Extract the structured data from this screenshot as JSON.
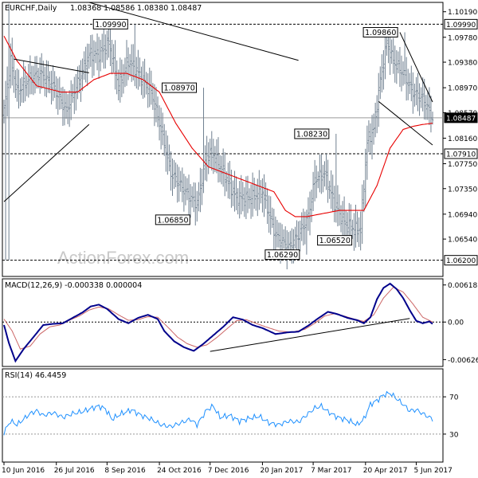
{
  "chart_data": [
    {
      "type": "ohlc",
      "title": "EURCHF,Daily",
      "ohlc_readout": [
        "1.08368",
        "1.08586",
        "1.08380",
        "1.08487"
      ],
      "ylim": [
        1.0594,
        1.1034
      ],
      "y_ticks": [
        "1.10190",
        "1.09780",
        "1.09380",
        "1.08970",
        "1.08570",
        "1.08160",
        "1.07750",
        "1.07350",
        "1.06940",
        "1.06540"
      ],
      "y_highlight": [
        "1.09990",
        "1.08487",
        "1.07910",
        "1.06200"
      ],
      "x_ticks": [
        "10 Jun 2016",
        "26 Jul 2016",
        "8 Sep 2016",
        "24 Oct 2016",
        "7 Dec 2016",
        "20 Jan 2017",
        "7 Mar 2017",
        "20 Apr 2017",
        "5 Jun 2017"
      ],
      "x_tick_index": [
        0,
        32,
        63,
        95,
        126,
        158,
        189,
        221,
        252
      ],
      "last_index": 262,
      "horizontal_levels": [
        1.0999,
        1.0791,
        1.062
      ],
      "current_level": 1.08487,
      "level_labels": [
        {
          "text": "1.09990",
          "i": 80,
          "value": 1.0999
        },
        {
          "text": "1.08970",
          "i": 122,
          "value": 1.0897
        },
        {
          "text": "1.06850",
          "i": 118,
          "value": 1.0685
        },
        {
          "text": "1.06290",
          "i": 185,
          "value": 1.0629
        },
        {
          "text": "1.08230",
          "i": 203,
          "value": 1.0823
        },
        {
          "text": "1.06520",
          "i": 217,
          "value": 1.0652
        },
        {
          "text": "1.09860",
          "i": 245,
          "value": 1.0986
        },
        {
          "text": "1.06200",
          "i": 1,
          "value": 1.062
        }
      ],
      "trendlines": [
        {
          "from": [
            0,
            1.0714
          ],
          "to": [
            52,
            1.0838
          ]
        },
        {
          "from": [
            6,
            1.0943
          ],
          "to": [
            52,
            1.0921
          ]
        },
        {
          "from": [
            52,
            1.1034
          ],
          "to": [
            180,
            1.0941
          ]
        },
        {
          "from": [
            242,
            1.0986
          ],
          "to": [
            262,
            1.0874
          ]
        },
        {
          "from": [
            229,
            1.0875
          ],
          "to": [
            262,
            1.0805
          ]
        }
      ],
      "price_waypoints": [
        [
          0,
          1.086
        ],
        [
          4,
          1.094
        ],
        [
          8,
          1.089
        ],
        [
          15,
          1.091
        ],
        [
          22,
          1.092
        ],
        [
          30,
          1.09
        ],
        [
          38,
          1.086
        ],
        [
          46,
          1.091
        ],
        [
          52,
          1.095
        ],
        [
          58,
          1.095
        ],
        [
          64,
          1.097
        ],
        [
          70,
          1.09
        ],
        [
          76,
          1.094
        ],
        [
          82,
          1.092
        ],
        [
          90,
          1.089
        ],
        [
          96,
          1.083
        ],
        [
          102,
          1.076
        ],
        [
          108,
          1.074
        ],
        [
          114,
          1.072
        ],
        [
          118,
          1.071
        ],
        [
          124,
          1.079
        ],
        [
          128,
          1.079
        ],
        [
          134,
          1.076
        ],
        [
          142,
          1.072
        ],
        [
          150,
          1.072
        ],
        [
          158,
          1.073
        ],
        [
          166,
          1.066
        ],
        [
          174,
          1.064
        ],
        [
          180,
          1.066
        ],
        [
          186,
          1.069
        ],
        [
          190,
          1.075
        ],
        [
          196,
          1.076
        ],
        [
          202,
          1.071
        ],
        [
          208,
          1.068
        ],
        [
          214,
          1.067
        ],
        [
          218,
          1.067
        ],
        [
          222,
          1.081
        ],
        [
          226,
          1.083
        ],
        [
          230,
          1.091
        ],
        [
          234,
          1.097
        ],
        [
          238,
          1.094
        ],
        [
          244,
          1.092
        ],
        [
          250,
          1.089
        ],
        [
          256,
          1.088
        ],
        [
          262,
          1.0849
        ]
      ],
      "sma_waypoints": [
        [
          0,
          1.098
        ],
        [
          8,
          1.094
        ],
        [
          20,
          1.09
        ],
        [
          35,
          1.089
        ],
        [
          45,
          1.089
        ],
        [
          55,
          1.091
        ],
        [
          65,
          1.092
        ],
        [
          75,
          1.092
        ],
        [
          85,
          1.091
        ],
        [
          95,
          1.089
        ],
        [
          105,
          1.084
        ],
        [
          115,
          1.08
        ],
        [
          125,
          1.077
        ],
        [
          135,
          1.076
        ],
        [
          145,
          1.075
        ],
        [
          155,
          1.074
        ],
        [
          165,
          1.073
        ],
        [
          172,
          1.07
        ],
        [
          178,
          1.069
        ],
        [
          185,
          1.069
        ],
        [
          195,
          1.0695
        ],
        [
          205,
          1.07
        ],
        [
          212,
          1.07
        ],
        [
          220,
          1.07
        ],
        [
          228,
          1.074
        ],
        [
          236,
          1.08
        ],
        [
          244,
          1.083
        ],
        [
          250,
          1.0835
        ],
        [
          256,
          1.0838
        ],
        [
          262,
          1.084
        ]
      ]
    },
    {
      "type": "line",
      "title": "MACD(12,26,9) -0.000338 0.000004",
      "ylim": [
        -0.0074,
        0.0072
      ],
      "y_ticks": [
        "0.00618",
        "0.00",
        "-0.00626"
      ],
      "zero_line": 0,
      "trendline": {
        "from": [
          126,
          -0.0049
        ],
        "to": [
          248,
          0.0006
        ]
      },
      "series": [
        {
          "color": "#00008b",
          "values": [
            [
              0,
              -0.0005
            ],
            [
              3,
              -0.0035
            ],
            [
              7,
              -0.0065
            ],
            [
              12,
              -0.0045
            ],
            [
              18,
              -0.0025
            ],
            [
              24,
              -0.0005
            ],
            [
              30,
              -0.0003
            ],
            [
              36,
              -0.0002
            ],
            [
              42,
              0.0007
            ],
            [
              48,
              0.0016
            ],
            [
              53,
              0.0026
            ],
            [
              58,
              0.0029
            ],
            [
              63,
              0.0022
            ],
            [
              70,
              0.0005
            ],
            [
              76,
              -0.0002
            ],
            [
              82,
              0.0007
            ],
            [
              88,
              0.0012
            ],
            [
              94,
              0.0005
            ],
            [
              98,
              -0.0015
            ],
            [
              104,
              -0.0032
            ],
            [
              110,
              -0.0042
            ],
            [
              116,
              -0.0048
            ],
            [
              122,
              -0.0036
            ],
            [
              128,
              -0.0022
            ],
            [
              134,
              -0.0008
            ],
            [
              140,
              0.0008
            ],
            [
              146,
              0.0004
            ],
            [
              152,
              -0.0005
            ],
            [
              158,
              -0.001
            ],
            [
              166,
              -0.002
            ],
            [
              174,
              -0.0017
            ],
            [
              180,
              -0.0016
            ],
            [
              186,
              -0.0006
            ],
            [
              192,
              0.0006
            ],
            [
              198,
              0.0017
            ],
            [
              204,
              0.0013
            ],
            [
              210,
              0.0007
            ],
            [
              216,
              0.0003
            ],
            [
              220,
              -0.0002
            ],
            [
              224,
              0.0008
            ],
            [
              228,
              0.0038
            ],
            [
              232,
              0.0057
            ],
            [
              236,
              0.0064
            ],
            [
              240,
              0.0055
            ],
            [
              244,
              0.004
            ],
            [
              248,
              0.002
            ],
            [
              252,
              0.0002
            ],
            [
              256,
              -0.0002
            ],
            [
              260,
              0.0001
            ],
            [
              262,
              -0.0003
            ]
          ]
        },
        {
          "color": "#cc6666",
          "values": [
            [
              0,
              0.0005
            ],
            [
              5,
              -0.0015
            ],
            [
              10,
              -0.0045
            ],
            [
              16,
              -0.004
            ],
            [
              22,
              -0.002
            ],
            [
              28,
              -0.0008
            ],
            [
              34,
              -0.0005
            ],
            [
              40,
              0.0003
            ],
            [
              46,
              0.001
            ],
            [
              52,
              0.002
            ],
            [
              58,
              0.0025
            ],
            [
              64,
              0.0022
            ],
            [
              70,
              0.0012
            ],
            [
              76,
              0.0003
            ],
            [
              82,
              0.0004
            ],
            [
              88,
              0.0009
            ],
            [
              94,
              0.0008
            ],
            [
              100,
              -0.0008
            ],
            [
              106,
              -0.0025
            ],
            [
              112,
              -0.0036
            ],
            [
              118,
              -0.0042
            ],
            [
              124,
              -0.0038
            ],
            [
              130,
              -0.0026
            ],
            [
              136,
              -0.0012
            ],
            [
              142,
              0.0002
            ],
            [
              148,
              0.0004
            ],
            [
              154,
              -0.0002
            ],
            [
              160,
              -0.0008
            ],
            [
              168,
              -0.0015
            ],
            [
              176,
              -0.0017
            ],
            [
              184,
              -0.0012
            ],
            [
              190,
              -0.0002
            ],
            [
              196,
              0.001
            ],
            [
              202,
              0.0014
            ],
            [
              208,
              0.001
            ],
            [
              214,
              0.0005
            ],
            [
              220,
              0.0001
            ],
            [
              226,
              0.0012
            ],
            [
              232,
              0.004
            ],
            [
              238,
              0.0058
            ],
            [
              244,
              0.005
            ],
            [
              250,
              0.003
            ],
            [
              256,
              0.0008
            ],
            [
              262,
              0.0
            ]
          ]
        }
      ]
    },
    {
      "type": "line",
      "title": "RSI(14) 46.4459",
      "ylim": [
        0,
        100
      ],
      "y_ticks": [
        "70",
        "30"
      ],
      "levels": [
        70,
        30
      ],
      "series": [
        {
          "color": "#1e90ff",
          "values": [
            [
              0,
              32
            ],
            [
              4,
              44
            ],
            [
              8,
              40
            ],
            [
              12,
              46
            ],
            [
              16,
              52
            ],
            [
              20,
              55
            ],
            [
              24,
              50
            ],
            [
              30,
              53
            ],
            [
              36,
              48
            ],
            [
              42,
              52
            ],
            [
              48,
              54
            ],
            [
              54,
              58
            ],
            [
              58,
              60
            ],
            [
              62,
              57
            ],
            [
              66,
              46
            ],
            [
              72,
              52
            ],
            [
              78,
              56
            ],
            [
              84,
              50
            ],
            [
              90,
              46
            ],
            [
              96,
              40
            ],
            [
              102,
              38
            ],
            [
              108,
              42
            ],
            [
              114,
              46
            ],
            [
              118,
              40
            ],
            [
              124,
              56
            ],
            [
              128,
              60
            ],
            [
              132,
              48
            ],
            [
              138,
              50
            ],
            [
              144,
              44
            ],
            [
              150,
              47
            ],
            [
              156,
              49
            ],
            [
              162,
              42
            ],
            [
              168,
              40
            ],
            [
              174,
              44
            ],
            [
              180,
              43
            ],
            [
              186,
              52
            ],
            [
              190,
              58
            ],
            [
              194,
              60
            ],
            [
              198,
              54
            ],
            [
              204,
              48
            ],
            [
              210,
              45
            ],
            [
              216,
              40
            ],
            [
              220,
              46
            ],
            [
              224,
              62
            ],
            [
              228,
              66
            ],
            [
              232,
              72
            ],
            [
              236,
              74
            ],
            [
              240,
              68
            ],
            [
              244,
              62
            ],
            [
              248,
              55
            ],
            [
              252,
              56
            ],
            [
              256,
              52
            ],
            [
              262,
              46
            ]
          ]
        }
      ]
    }
  ],
  "watermark": "ActionForex.com",
  "colors": {
    "price": "#708090",
    "sma": "#e80000",
    "macd": "#00008b",
    "signal": "#cc6666",
    "rsi": "#1e90ff",
    "levels": "#000000"
  }
}
